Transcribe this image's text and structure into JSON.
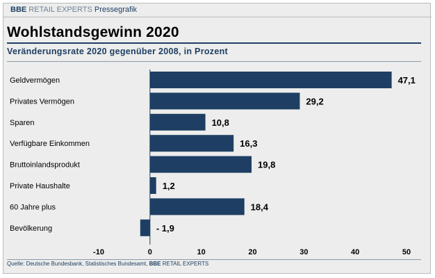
{
  "header": {
    "brand": "BBE",
    "brand_rest": "RETAIL EXPERTS",
    "label": "Pressegrafik"
  },
  "colors": {
    "bar": "#1e3f63",
    "text": "#000000",
    "accent": "#1e3f63",
    "background": "#ecedec"
  },
  "chart_data": {
    "type": "bar",
    "orientation": "horizontal",
    "title": "Wohlstandsgewinn 2020",
    "subtitle": "Veränderungsrate 2020 gegenüber 2008, in Prozent",
    "categories": [
      "Geldvermögen",
      "Privates Vermögen",
      "Sparen",
      "Verfügbare Einkommen",
      "Bruttoinlandsprodukt",
      "Private Haushalte",
      "60 Jahre plus",
      "Bevölkerung"
    ],
    "values": [
      47.1,
      29.2,
      10.8,
      16.3,
      19.8,
      1.2,
      18.4,
      -1.9
    ],
    "value_labels": [
      "47,1",
      "29,2",
      "10,8",
      "16,3",
      "19,8",
      "1,2",
      "18,4",
      "- 1,9"
    ],
    "xlim": [
      -10,
      50
    ],
    "xticks": [
      -10,
      0,
      10,
      20,
      30,
      40,
      50
    ],
    "xtick_labels": [
      "-10",
      "0",
      "10",
      "20",
      "30",
      "40",
      "50"
    ],
    "xlabel": "",
    "ylabel": "",
    "grid": false
  },
  "footer": {
    "source_prefix": "Quelle: Deutsche Bundesbank, Statistisches Bundesamt,",
    "brand": "BBE",
    "brand_rest": "RETAIL EXPERTS"
  }
}
